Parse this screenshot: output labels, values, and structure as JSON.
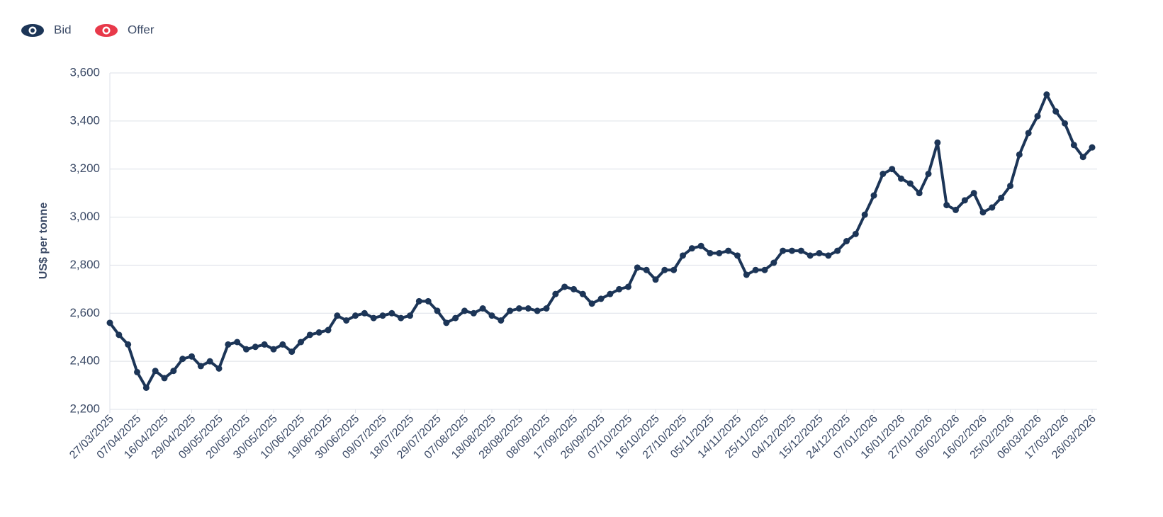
{
  "chart_data": {
    "type": "line",
    "y_label": "US$ per tonne",
    "categories": [
      "27/03/2025",
      null,
      null,
      "07/04/2025",
      null,
      null,
      "16/04/2025",
      null,
      null,
      "29/04/2025",
      null,
      null,
      "09/05/2025",
      null,
      null,
      "20/05/2025",
      null,
      null,
      "30/05/2025",
      null,
      null,
      "10/06/2025",
      null,
      null,
      "19/06/2025",
      null,
      null,
      "30/06/2025",
      null,
      null,
      "09/07/2025",
      null,
      null,
      "18/07/2025",
      null,
      null,
      "29/07/2025",
      null,
      null,
      "07/08/2025",
      null,
      null,
      "18/08/2025",
      null,
      null,
      "28/08/2025",
      null,
      null,
      "08/09/2025",
      null,
      null,
      "17/09/2025",
      null,
      null,
      "26/09/2025",
      null,
      null,
      "07/10/2025",
      null,
      null,
      "16/10/2025",
      null,
      null,
      "27/10/2025",
      null,
      null,
      "05/11/2025",
      null,
      null,
      "14/11/2025",
      null,
      null,
      "25/11/2025",
      null,
      null,
      "04/12/2025",
      null,
      null,
      "15/12/2025",
      null,
      null,
      "24/12/2025",
      null,
      null,
      "07/01/2026",
      null,
      null,
      "16/01/2026",
      null,
      null,
      "27/01/2026",
      null,
      null,
      "05/02/2026",
      null,
      null,
      "16/02/2026",
      null,
      null,
      "25/02/2026",
      null,
      null,
      "06/03/2026",
      null,
      null,
      "17/03/2026",
      null,
      null,
      "26/03/2026"
    ],
    "series": [
      {
        "name": "Bid",
        "color": "#1c3557",
        "values": [
          2560,
          2510,
          2470,
          2355,
          2290,
          2360,
          2330,
          2360,
          2410,
          2420,
          2380,
          2400,
          2370,
          2470,
          2480,
          2450,
          2460,
          2470,
          2450,
          2470,
          2440,
          2480,
          2510,
          2520,
          2530,
          2590,
          2570,
          2590,
          2600,
          2580,
          2590,
          2600,
          2580,
          2590,
          2650,
          2650,
          2610,
          2560,
          2580,
          2610,
          2600,
          2620,
          2590,
          2570,
          2610,
          2620,
          2620,
          2610,
          2620,
          2680,
          2710,
          2700,
          2680,
          2640,
          2660,
          2680,
          2700,
          2710,
          2790,
          2780,
          2740,
          2780,
          2780,
          2840,
          2870,
          2880,
          2850,
          2850,
          2860,
          2840,
          2760,
          2780,
          2780,
          2810,
          2860,
          2860,
          2860,
          2840,
          2850,
          2840,
          2860,
          2900,
          2930,
          3010,
          3090,
          3180,
          3200,
          3160,
          3140,
          3100,
          3180,
          3310,
          3050,
          3030,
          3070,
          3100,
          3020,
          3040,
          3080,
          3130,
          3260,
          3350,
          3420,
          3510,
          3440,
          3390,
          3300,
          3250,
          3290
        ]
      }
    ],
    "hidden_series": [
      {
        "name": "Offer",
        "color": "#e8394a"
      }
    ],
    "ylim": [
      2200,
      3600
    ],
    "yticks": [
      {
        "value": 2200,
        "label": "2,200"
      },
      {
        "value": 2400,
        "label": "2,400"
      },
      {
        "value": 2600,
        "label": "2,600"
      },
      {
        "value": 2800,
        "label": "2,800"
      },
      {
        "value": 3000,
        "label": "3,000"
      },
      {
        "value": 3200,
        "label": "3,200"
      },
      {
        "value": 3400,
        "label": "3,400"
      },
      {
        "value": 3600,
        "label": "3,600"
      }
    ],
    "grid": true
  }
}
